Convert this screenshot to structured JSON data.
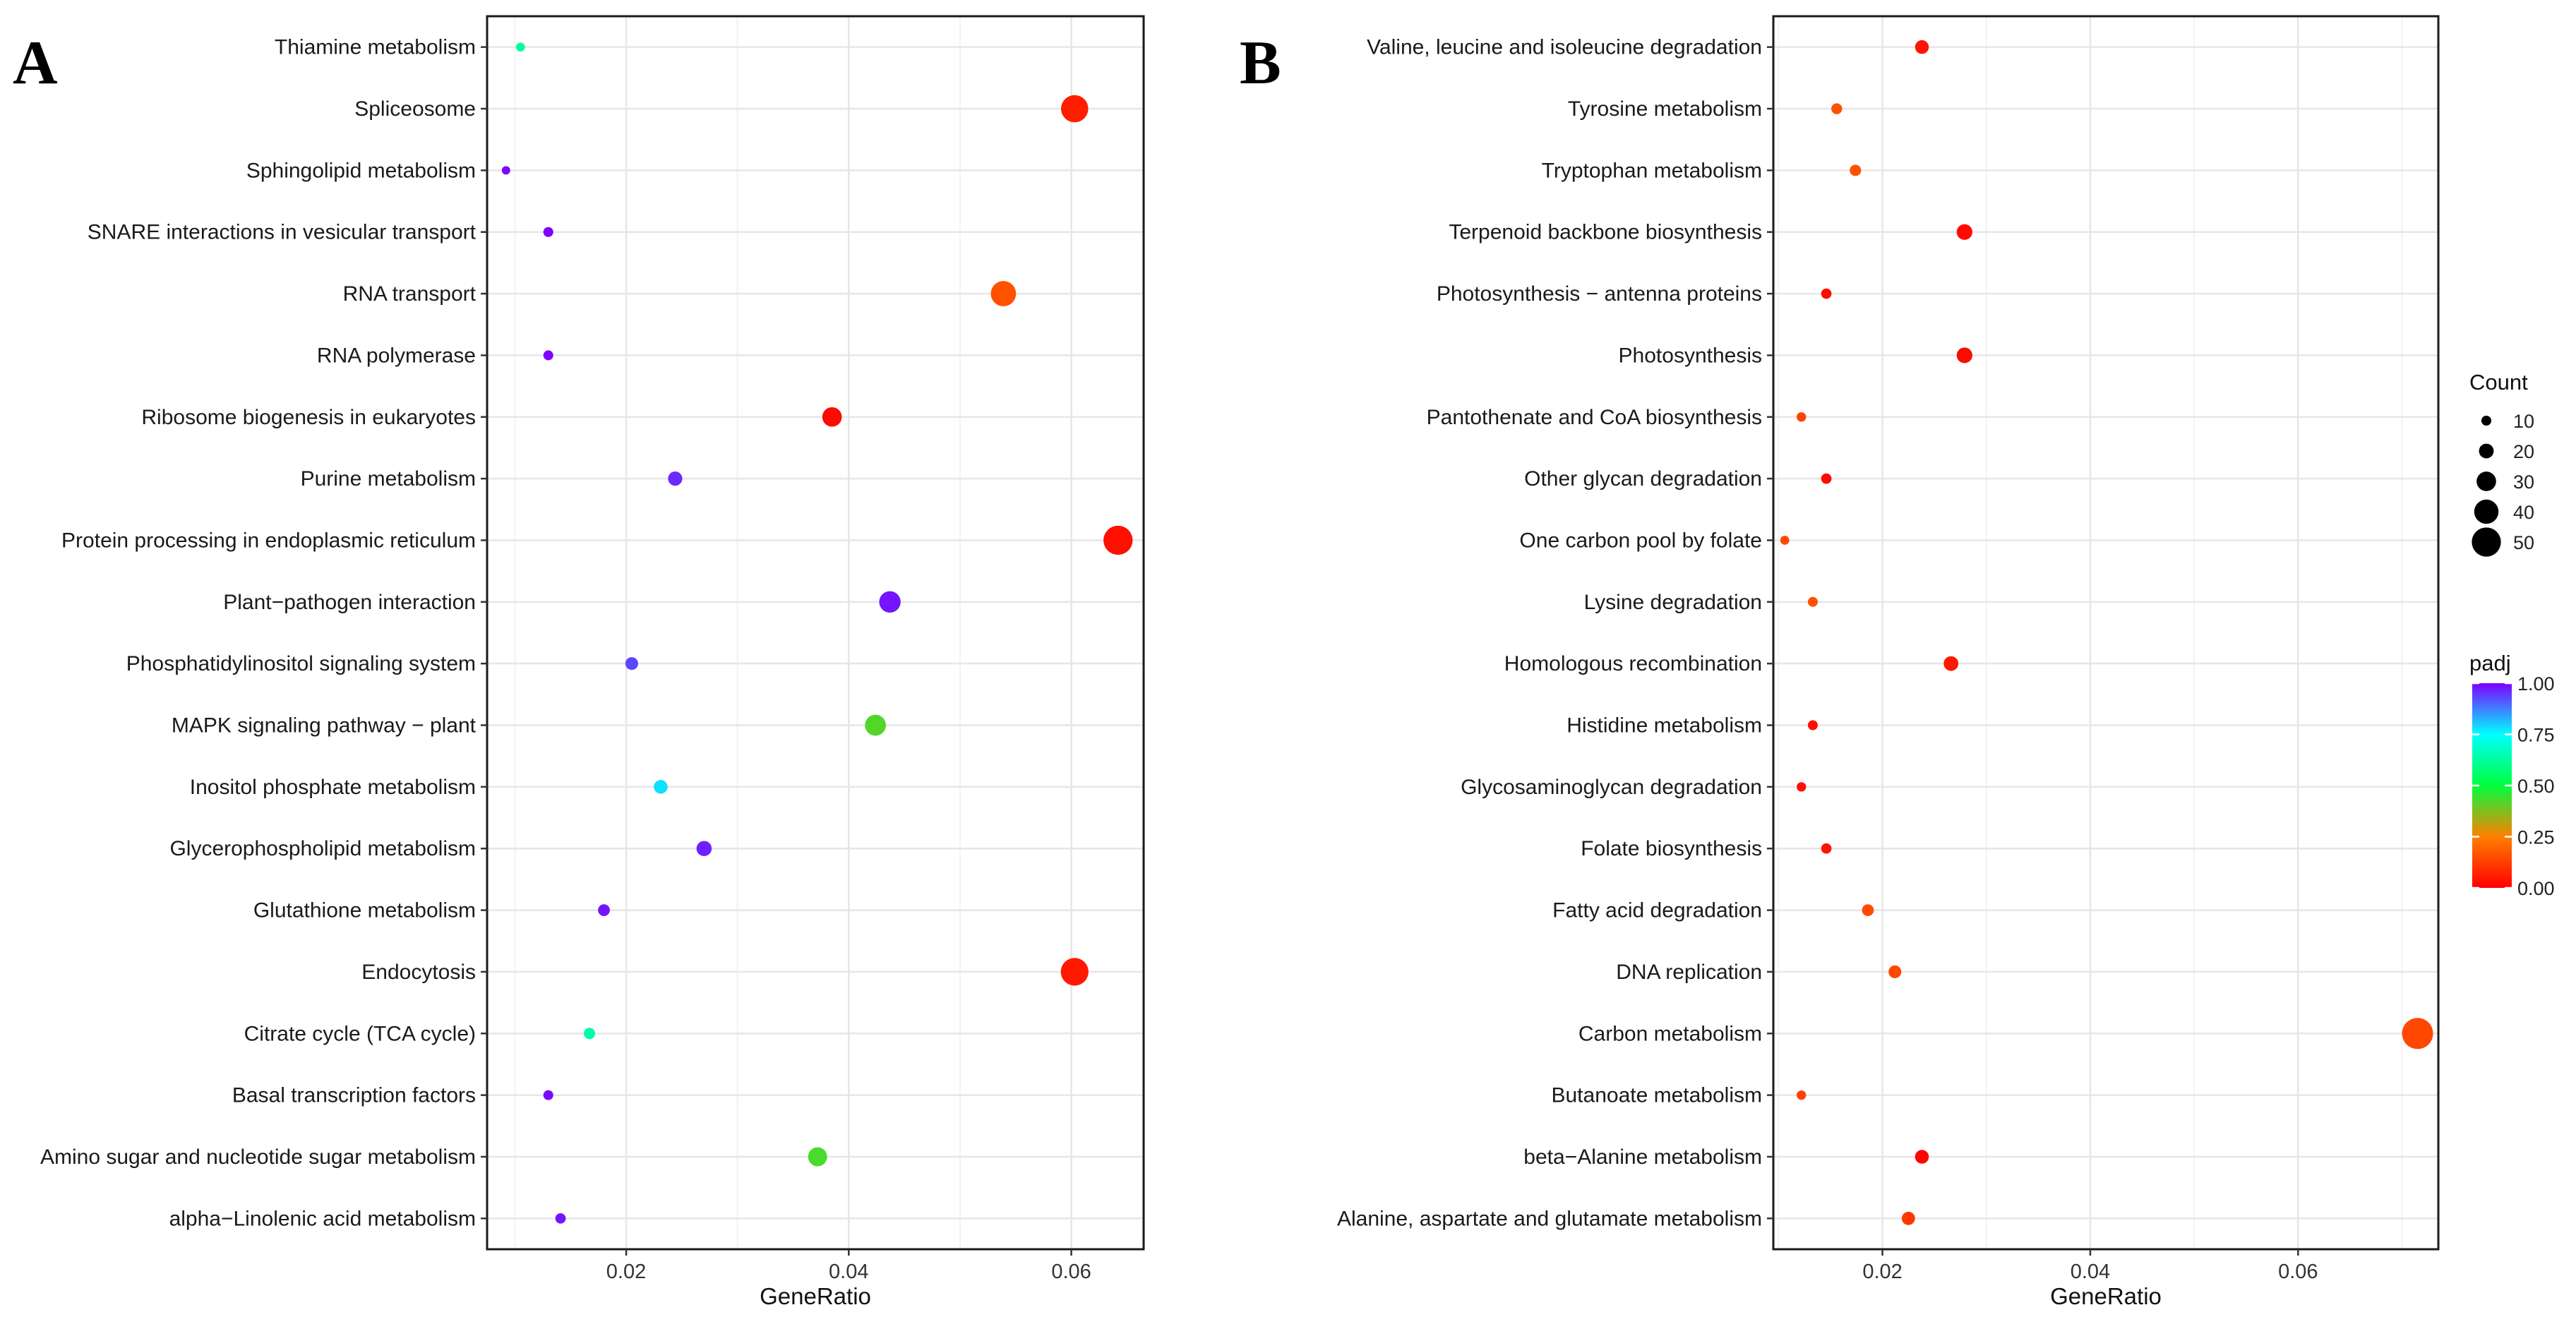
{
  "chart_data": [
    {
      "type": "scatter",
      "panel": "A",
      "xlabel": "GeneRatio",
      "xlim": [
        0.0075,
        0.0665
      ],
      "xticks": [
        0.02,
        0.04,
        0.06
      ],
      "tick_labels": [
        "0.02",
        "0.04",
        "0.06"
      ],
      "categories": [
        "Thiamine metabolism",
        "Spliceosome",
        "Sphingolipid metabolism",
        "SNARE interactions in vesicular transport",
        "RNA transport",
        "RNA polymerase",
        "Ribosome biogenesis in eukaryotes",
        "Purine metabolism",
        "Protein processing in endoplasmic reticulum",
        "Plant−pathogen interaction",
        "Phosphatidylinositol signaling system",
        "MAPK signaling pathway − plant",
        "Inositol phosphate metabolism",
        "Glycerophospholipid metabolism",
        "Glutathione metabolism",
        "Endocytosis",
        "Citrate cycle (TCA cycle)",
        "Basal transcription factors",
        "Amino sugar and nucleotide sugar metabolism",
        "alpha−Linolenic acid metabolism"
      ],
      "gene_ratio": [
        0.0105,
        0.0603,
        0.0092,
        0.013,
        0.0539,
        0.013,
        0.0385,
        0.0244,
        0.0642,
        0.0437,
        0.0205,
        0.0424,
        0.0231,
        0.027,
        0.018,
        0.0603,
        0.0167,
        0.013,
        0.0372,
        0.0141
      ],
      "count": [
        8,
        46,
        7,
        10,
        42,
        10,
        30,
        19,
        50,
        34,
        16,
        33,
        18,
        21,
        14,
        47,
        13,
        10,
        29,
        11
      ],
      "padj": [
        0.62,
        0.06,
        0.99,
        1.0,
        0.16,
        1.0,
        0.02,
        0.96,
        0.03,
        0.98,
        0.93,
        0.42,
        0.78,
        0.97,
        0.98,
        0.05,
        0.64,
        0.99,
        0.43,
        0.98
      ]
    },
    {
      "type": "scatter",
      "panel": "B",
      "xlabel": "GeneRatio",
      "xlim": [
        0.0095,
        0.0735
      ],
      "xticks": [
        0.02,
        0.04,
        0.06
      ],
      "tick_labels": [
        "0.02",
        "0.04",
        "0.06"
      ],
      "categories": [
        "Valine, leucine and isoleucine degradation",
        "Tyrosine metabolism",
        "Tryptophan metabolism",
        "Terpenoid backbone biosynthesis",
        "Photosynthesis − antenna proteins",
        "Photosynthesis",
        "Pantothenate and CoA biosynthesis",
        "Other glycan degradation",
        "One carbon pool by folate",
        "Lysine degradation",
        "Homologous recombination",
        "Histidine metabolism",
        "Glycosaminoglycan degradation",
        "Folate biosynthesis",
        "Fatty acid degradation",
        "DNA replication",
        "Carbon metabolism",
        "Butanoate metabolism",
        "beta−Alanine metabolism",
        "Alanine, aspartate and glutamate metabolism"
      ],
      "gene_ratio": [
        0.0238,
        0.0156,
        0.0174,
        0.0279,
        0.0146,
        0.0279,
        0.0122,
        0.0146,
        0.0106,
        0.0133,
        0.0266,
        0.0133,
        0.0122,
        0.0146,
        0.0186,
        0.0212,
        0.0715,
        0.0122,
        0.0238,
        0.0225
      ],
      "count": [
        18,
        12,
        13,
        22,
        11,
        22,
        9,
        11,
        8,
        10,
        20,
        10,
        9,
        11,
        14,
        16,
        54,
        9,
        18,
        17
      ],
      "padj": [
        0.04,
        0.16,
        0.16,
        0.02,
        0.02,
        0.02,
        0.13,
        0.02,
        0.14,
        0.16,
        0.05,
        0.03,
        0.03,
        0.04,
        0.15,
        0.14,
        0.14,
        0.13,
        0.01,
        0.11
      ]
    }
  ],
  "panels": {
    "a": {
      "letter": "A"
    },
    "b": {
      "letter": "B"
    }
  },
  "legend": {
    "count_title": "Count",
    "count_values": [
      10,
      20,
      30,
      40,
      50
    ],
    "count_labels": [
      "10",
      "20",
      "30",
      "40",
      "50"
    ],
    "padj_title": "padj",
    "padj_values": [
      1.0,
      0.75,
      0.5,
      0.25,
      0.0
    ],
    "padj_labels": [
      "1.00",
      "0.75",
      "0.50",
      "0.25",
      "0.00"
    ]
  },
  "colors": {
    "scale": [
      "#ff0000",
      "#ff7f00",
      "#00ff3c",
      "#00ffff",
      "#7f00ff"
    ]
  }
}
